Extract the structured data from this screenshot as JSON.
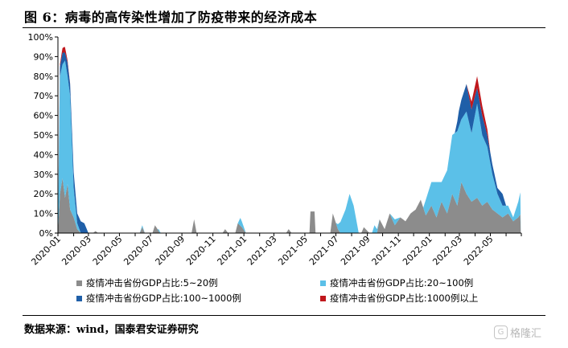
{
  "header": {
    "title": "图 6：病毒的高传染性增加了防疫带来的经济成本"
  },
  "footer": {
    "source": "数据来源：wind，国泰君安证券研究",
    "watermark": "格隆汇"
  },
  "chart_data": {
    "type": "area",
    "title": "",
    "xlabel": "",
    "ylabel": "",
    "stacked": true,
    "ylim": [
      0,
      100
    ],
    "yticks": [
      "0%",
      "10%",
      "20%",
      "30%",
      "40%",
      "50%",
      "60%",
      "70%",
      "80%",
      "90%",
      "100%"
    ],
    "xlim": [
      "2020-01",
      "2022-07"
    ],
    "xticks": [
      "2020-01",
      "2020-03",
      "2020-05",
      "2020-07",
      "2020-09",
      "2020-11",
      "2021-01",
      "2021-03",
      "2021-05",
      "2021-07",
      "2021-09",
      "2021-11",
      "2022-01",
      "2022-03",
      "2022-05"
    ],
    "legend_position": "bottom",
    "grid": false,
    "series": [
      {
        "name": "疫情冲击省份GDP占比:5~20例",
        "color": "#8c8c8c",
        "points": [
          [
            "2020-01-01",
            0
          ],
          [
            "2020-01-05",
            20
          ],
          [
            "2020-01-10",
            28
          ],
          [
            "2020-01-15",
            18
          ],
          [
            "2020-01-20",
            25
          ],
          [
            "2020-01-25",
            12
          ],
          [
            "2020-02-01",
            8
          ],
          [
            "2020-02-08",
            2
          ],
          [
            "2020-02-15",
            0
          ],
          [
            "2020-03-10",
            0
          ],
          [
            "2020-03-15",
            1
          ],
          [
            "2020-03-20",
            0
          ],
          [
            "2020-06-10",
            0
          ],
          [
            "2020-06-15",
            3
          ],
          [
            "2020-06-20",
            0
          ],
          [
            "2020-07-05",
            0
          ],
          [
            "2020-07-10",
            4
          ],
          [
            "2020-07-20",
            0
          ],
          [
            "2020-09-20",
            0
          ],
          [
            "2020-09-25",
            7
          ],
          [
            "2020-09-30",
            0
          ],
          [
            "2020-11-20",
            0
          ],
          [
            "2020-11-25",
            2
          ],
          [
            "2020-12-01",
            0
          ],
          [
            "2020-12-15",
            0
          ],
          [
            "2020-12-20",
            5
          ],
          [
            "2020-12-28",
            3
          ],
          [
            "2021-01-05",
            0
          ],
          [
            "2021-03-25",
            0
          ],
          [
            "2021-03-30",
            2
          ],
          [
            "2021-04-05",
            0
          ],
          [
            "2021-05-10",
            0
          ],
          [
            "2021-05-12",
            11
          ],
          [
            "2021-05-20",
            11
          ],
          [
            "2021-05-22",
            0
          ],
          [
            "2021-06-20",
            0
          ],
          [
            "2021-06-25",
            10
          ],
          [
            "2021-07-05",
            2
          ],
          [
            "2021-07-10",
            0
          ],
          [
            "2021-08-20",
            0
          ],
          [
            "2021-08-25",
            3
          ],
          [
            "2021-09-05",
            0
          ],
          [
            "2021-09-20",
            0
          ],
          [
            "2021-09-25",
            7
          ],
          [
            "2021-10-05",
            2
          ],
          [
            "2021-10-15",
            10
          ],
          [
            "2021-10-25",
            4
          ],
          [
            "2021-11-05",
            8
          ],
          [
            "2021-11-15",
            6
          ],
          [
            "2021-11-25",
            10
          ],
          [
            "2021-12-05",
            12
          ],
          [
            "2021-12-15",
            17
          ],
          [
            "2021-12-25",
            9
          ],
          [
            "2022-01-05",
            14
          ],
          [
            "2022-01-15",
            8
          ],
          [
            "2022-01-25",
            16
          ],
          [
            "2022-02-05",
            10
          ],
          [
            "2022-02-15",
            20
          ],
          [
            "2022-02-25",
            14
          ],
          [
            "2022-03-05",
            26
          ],
          [
            "2022-03-15",
            20
          ],
          [
            "2022-03-25",
            16
          ],
          [
            "2022-04-05",
            18
          ],
          [
            "2022-04-15",
            14
          ],
          [
            "2022-04-25",
            16
          ],
          [
            "2022-05-05",
            12
          ],
          [
            "2022-05-15",
            10
          ],
          [
            "2022-05-25",
            8
          ],
          [
            "2022-06-05",
            10
          ],
          [
            "2022-06-15",
            6
          ],
          [
            "2022-06-25",
            8
          ],
          [
            "2022-06-30",
            10
          ]
        ]
      },
      {
        "name": "疫情冲击省份GDP占比:20~100例",
        "color": "#5bc0e8",
        "points": [
          [
            "2020-01-01",
            0
          ],
          [
            "2020-01-05",
            60
          ],
          [
            "2020-01-10",
            58
          ],
          [
            "2020-01-15",
            70
          ],
          [
            "2020-01-20",
            55
          ],
          [
            "2020-01-25",
            58
          ],
          [
            "2020-02-01",
            15
          ],
          [
            "2020-02-08",
            3
          ],
          [
            "2020-02-15",
            0
          ],
          [
            "2020-06-10",
            0
          ],
          [
            "2020-06-15",
            1
          ],
          [
            "2020-06-20",
            0
          ],
          [
            "2020-07-15",
            0
          ],
          [
            "2020-07-18",
            1
          ],
          [
            "2020-07-22",
            0
          ],
          [
            "2020-12-20",
            0
          ],
          [
            "2020-12-25",
            4
          ],
          [
            "2021-01-05",
            0
          ],
          [
            "2021-07-01",
            0
          ],
          [
            "2021-07-20",
            12
          ],
          [
            "2021-07-28",
            20
          ],
          [
            "2021-08-05",
            14
          ],
          [
            "2021-08-15",
            0
          ],
          [
            "2021-09-10",
            0
          ],
          [
            "2021-09-15",
            4
          ],
          [
            "2021-09-25",
            0
          ],
          [
            "2021-10-15",
            0
          ],
          [
            "2021-10-25",
            3
          ],
          [
            "2021-11-05",
            0
          ],
          [
            "2021-12-20",
            0
          ],
          [
            "2021-12-25",
            8
          ],
          [
            "2022-01-05",
            12
          ],
          [
            "2022-01-15",
            18
          ],
          [
            "2022-01-25",
            10
          ],
          [
            "2022-02-05",
            22
          ],
          [
            "2022-02-15",
            30
          ],
          [
            "2022-02-25",
            38
          ],
          [
            "2022-03-05",
            32
          ],
          [
            "2022-03-15",
            42
          ],
          [
            "2022-03-25",
            35
          ],
          [
            "2022-04-05",
            48
          ],
          [
            "2022-04-15",
            36
          ],
          [
            "2022-04-25",
            28
          ],
          [
            "2022-05-05",
            18
          ],
          [
            "2022-05-15",
            10
          ],
          [
            "2022-05-25",
            6
          ],
          [
            "2022-06-05",
            4
          ],
          [
            "2022-06-15",
            2
          ],
          [
            "2022-06-25",
            8
          ],
          [
            "2022-06-30",
            12
          ]
        ]
      },
      {
        "name": "疫情冲击省份GDP占比:100~1000例",
        "color": "#1f5fa8",
        "points": [
          [
            "2020-01-01",
            0
          ],
          [
            "2020-01-05",
            5
          ],
          [
            "2020-01-10",
            6
          ],
          [
            "2020-01-15",
            4
          ],
          [
            "2020-01-20",
            7
          ],
          [
            "2020-01-25",
            6
          ],
          [
            "2020-02-01",
            8
          ],
          [
            "2020-02-08",
            5
          ],
          [
            "2020-02-15",
            6
          ],
          [
            "2020-02-22",
            5
          ],
          [
            "2020-03-01",
            0
          ],
          [
            "2022-02-20",
            0
          ],
          [
            "2022-02-28",
            8
          ],
          [
            "2022-03-05",
            10
          ],
          [
            "2022-03-15",
            14
          ],
          [
            "2022-03-25",
            12
          ],
          [
            "2022-04-05",
            8
          ],
          [
            "2022-04-15",
            10
          ],
          [
            "2022-04-25",
            6
          ],
          [
            "2022-05-05",
            5
          ],
          [
            "2022-05-15",
            3
          ],
          [
            "2022-05-25",
            6
          ],
          [
            "2022-06-01",
            0
          ]
        ]
      },
      {
        "name": "疫情冲击省份GDP占比:1000例以上",
        "color": "#c0171c",
        "points": [
          [
            "2020-01-01",
            0
          ],
          [
            "2020-01-08",
            2
          ],
          [
            "2020-01-14",
            3
          ],
          [
            "2020-01-20",
            1
          ],
          [
            "2020-01-26",
            0
          ],
          [
            "2022-03-15",
            0
          ],
          [
            "2022-03-25",
            4
          ],
          [
            "2022-04-05",
            6
          ],
          [
            "2022-04-15",
            5
          ],
          [
            "2022-04-25",
            3
          ],
          [
            "2022-05-01",
            0
          ]
        ]
      }
    ]
  }
}
